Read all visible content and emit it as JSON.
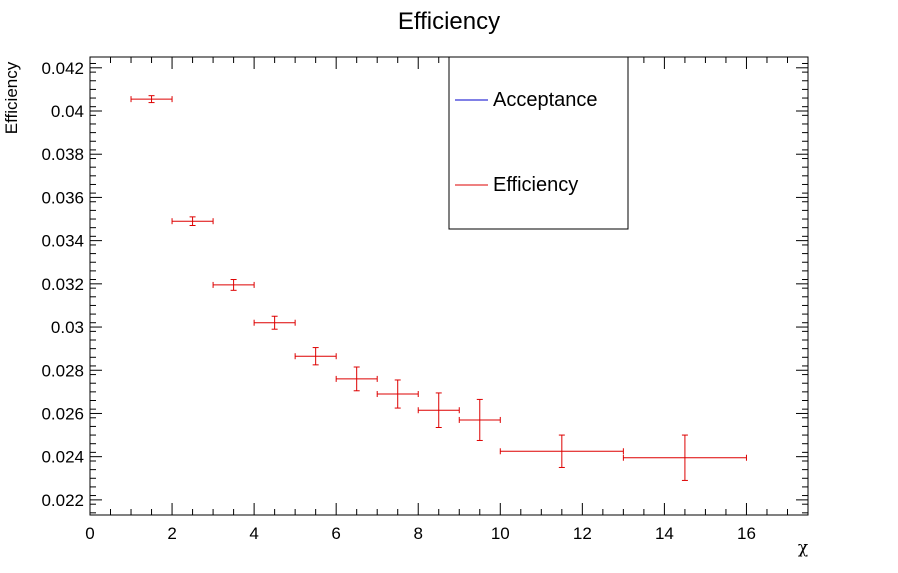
{
  "chart_data": {
    "type": "scatter",
    "title": "Efficiency",
    "xlabel": "χ",
    "ylabel": "Efficiency",
    "xlim": [
      0,
      17.5
    ],
    "ylim": [
      0.0213,
      0.0425
    ],
    "x_ticks": [
      0,
      2,
      4,
      6,
      8,
      10,
      12,
      14,
      16
    ],
    "y_ticks": [
      0.022,
      0.024,
      0.026,
      0.028,
      0.03,
      0.032,
      0.034,
      0.036,
      0.038,
      0.04,
      0.042
    ],
    "x_tick_labels": [
      "0",
      "2",
      "4",
      "6",
      "8",
      "10",
      "12",
      "14",
      "16"
    ],
    "y_tick_labels": [
      "0.022",
      "0.024",
      "0.026",
      "0.028",
      "0.03",
      "0.032",
      "0.034",
      "0.036",
      "0.038",
      "0.04",
      "0.042"
    ],
    "grid": false,
    "legend_position": "top-center",
    "legend": [
      {
        "label": "Acceptance",
        "color": "#0000cc"
      },
      {
        "label": "Efficiency",
        "color": "#dd0000"
      }
    ],
    "series": [
      {
        "name": "Efficiency",
        "color": "#dd0000",
        "points": [
          {
            "x": 1.5,
            "y": 0.04055,
            "xerr": 0.5,
            "yerr": 0.00016
          },
          {
            "x": 2.5,
            "y": 0.0349,
            "xerr": 0.5,
            "yerr": 0.0002
          },
          {
            "x": 3.5,
            "y": 0.03195,
            "xerr": 0.5,
            "yerr": 0.00025
          },
          {
            "x": 4.5,
            "y": 0.0302,
            "xerr": 0.5,
            "yerr": 0.0003
          },
          {
            "x": 5.5,
            "y": 0.02865,
            "xerr": 0.5,
            "yerr": 0.0004
          },
          {
            "x": 6.5,
            "y": 0.0276,
            "xerr": 0.5,
            "yerr": 0.00055
          },
          {
            "x": 7.5,
            "y": 0.0269,
            "xerr": 0.5,
            "yerr": 0.00065
          },
          {
            "x": 8.5,
            "y": 0.02615,
            "xerr": 0.5,
            "yerr": 0.0008
          },
          {
            "x": 9.5,
            "y": 0.0257,
            "xerr": 0.5,
            "yerr": 0.00095
          },
          {
            "x": 11.5,
            "y": 0.02425,
            "xerr": 1.5,
            "yerr": 0.00075
          },
          {
            "x": 14.5,
            "y": 0.02395,
            "xerr": 1.5,
            "yerr": 0.00105
          }
        ]
      }
    ]
  }
}
